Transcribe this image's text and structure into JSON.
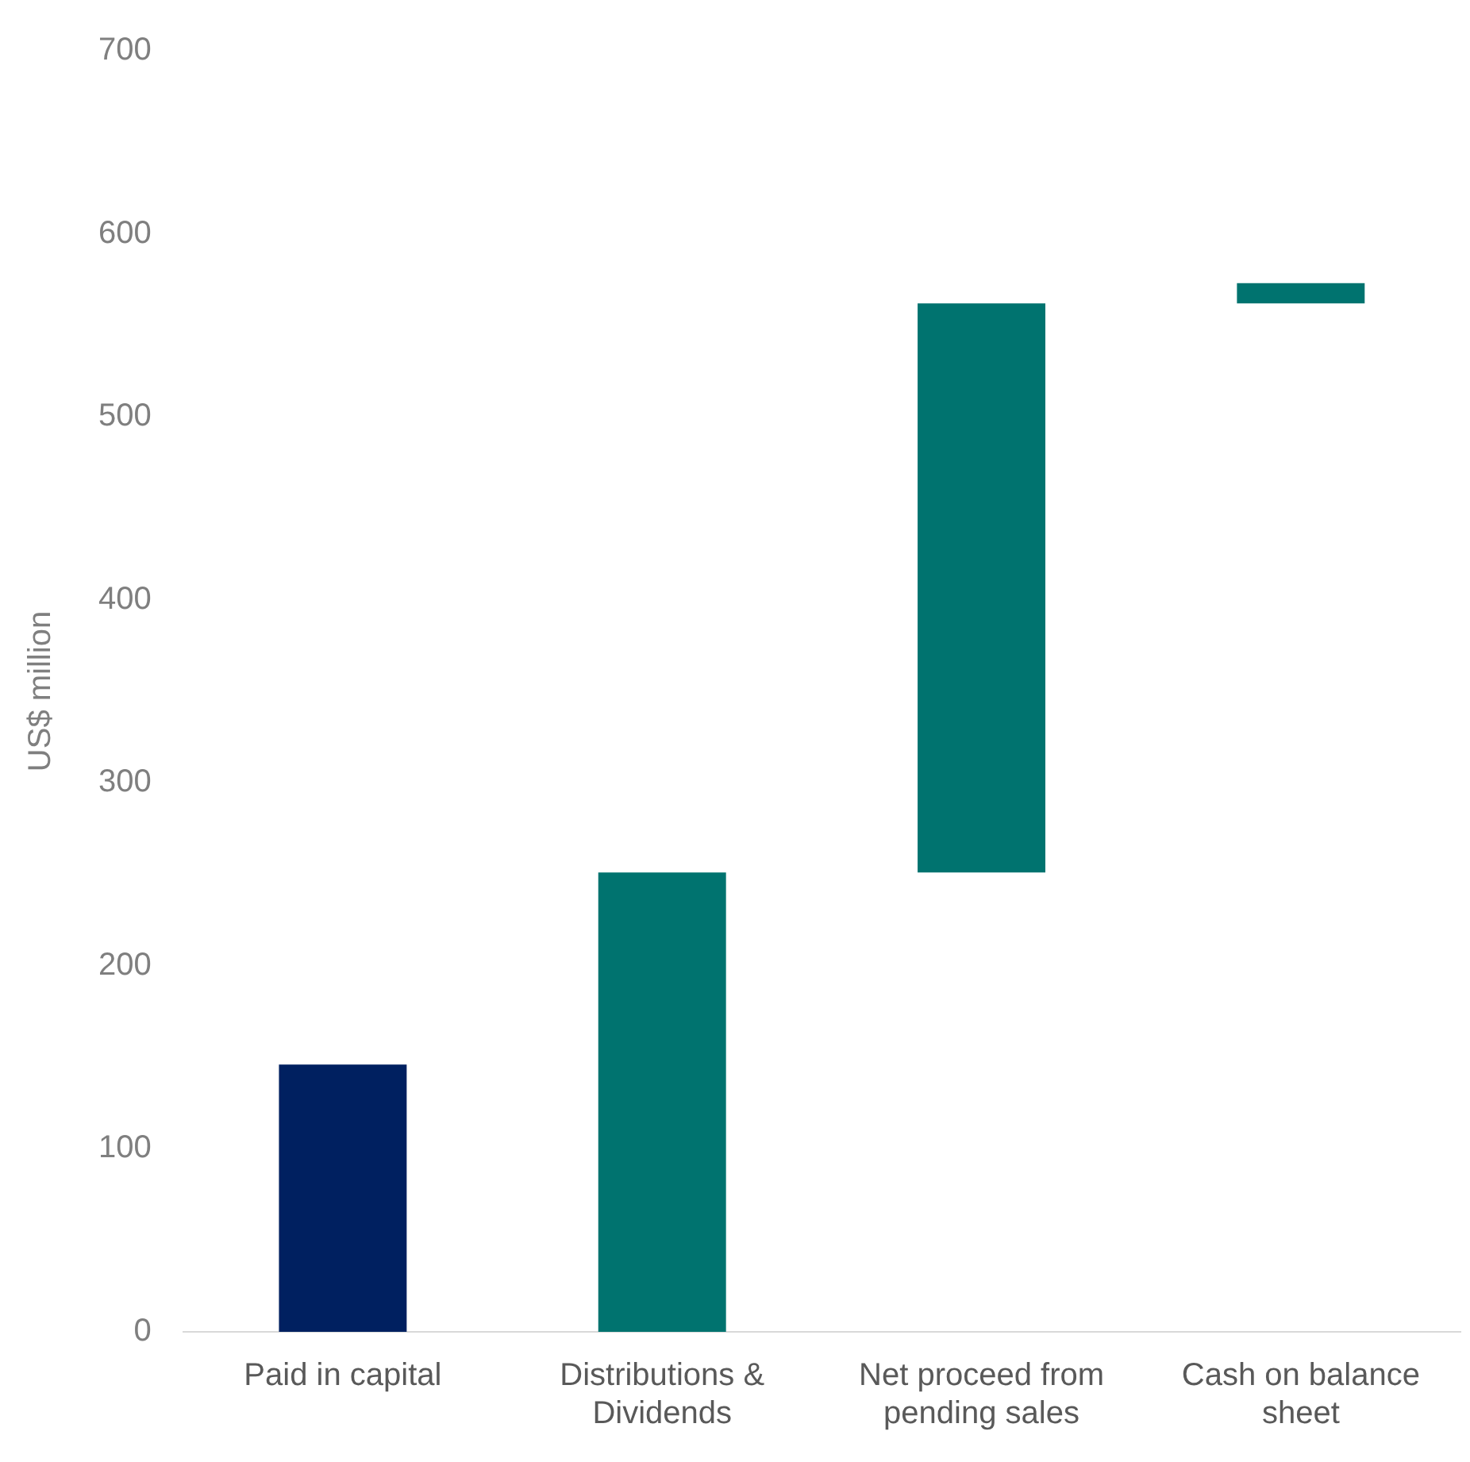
{
  "chart_data": {
    "type": "bar",
    "ylabel": "US$ million",
    "categories": [
      "Paid in capital",
      "Distributions & Dividends",
      "Net proceed from pending sales",
      "Cash on balance sheet"
    ],
    "values": [
      146,
      251,
      311,
      11
    ],
    "base": [
      0,
      0,
      251,
      562
    ],
    "colors": [
      "#002060",
      "#00736f",
      "#00736f",
      "#00736f"
    ],
    "ylim": [
      0,
      700
    ],
    "yticks": [
      0,
      100,
      200,
      300,
      400,
      500,
      600,
      700
    ],
    "grid": false,
    "legend": false
  }
}
